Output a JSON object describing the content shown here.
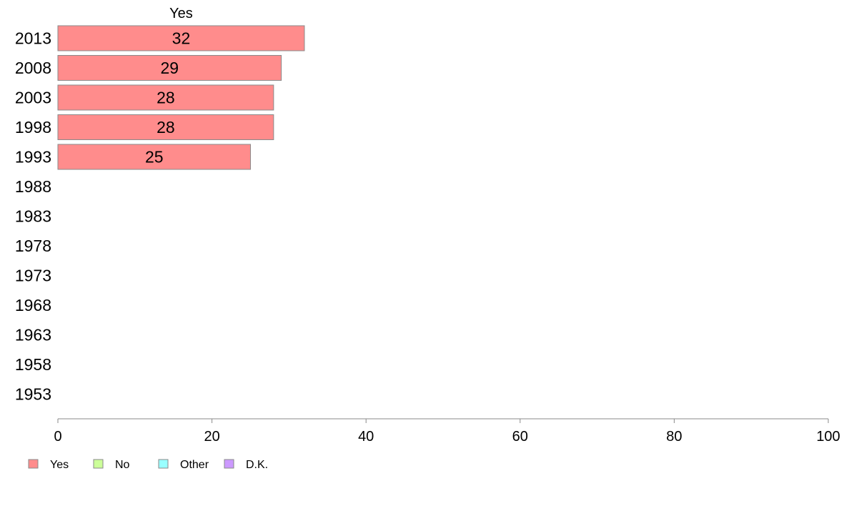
{
  "chart_data": {
    "type": "bar",
    "orientation": "horizontal",
    "stacked": true,
    "categories": [
      "2013",
      "2008",
      "2003",
      "1998",
      "1993",
      "1988",
      "1983",
      "1978",
      "1973",
      "1968",
      "1963",
      "1958",
      "1953"
    ],
    "series": [
      {
        "name": "Yes",
        "color": "#ff8c8c",
        "values": [
          32,
          29,
          28,
          28,
          25,
          null,
          null,
          null,
          null,
          null,
          null,
          null,
          null
        ]
      },
      {
        "name": "No",
        "color": "#ccff99",
        "values": [
          null,
          null,
          null,
          null,
          null,
          null,
          null,
          null,
          null,
          null,
          null,
          null,
          null
        ]
      },
      {
        "name": "Other",
        "color": "#99ffff",
        "values": [
          null,
          null,
          null,
          null,
          null,
          null,
          null,
          null,
          null,
          null,
          null,
          null,
          null
        ]
      },
      {
        "name": "D.K.",
        "color": "#cc99ff",
        "values": [
          null,
          null,
          null,
          null,
          null,
          null,
          null,
          null,
          null,
          null,
          null,
          null,
          null
        ]
      }
    ],
    "data_labels": [
      "32",
      "29",
      "28",
      "28",
      "25"
    ],
    "series_header": "Yes",
    "xlim": [
      0,
      100
    ],
    "xticks": [
      0,
      20,
      40,
      60,
      80,
      100
    ],
    "xlabel": "",
    "ylabel": "",
    "grid": false,
    "legend_position": "bottom-left"
  }
}
